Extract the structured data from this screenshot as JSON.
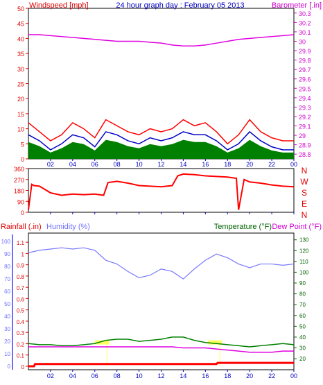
{
  "chart_data": [
    {
      "name": "top-panel",
      "type": "line",
      "title": "24 hour graph day : February 05 2013",
      "left_label": "Windspeed [mph]",
      "right_label": "Barometer [.in]",
      "x_ticks": [
        "02",
        "04",
        "06",
        "08",
        "10",
        "12",
        "14",
        "16",
        "18",
        "20",
        "22",
        "00"
      ],
      "left_ticks": [
        "0",
        "5",
        "10",
        "15",
        "20",
        "25",
        "30",
        "35",
        "40",
        "45",
        "50"
      ],
      "right_ticks": [
        "28.8",
        "28.9",
        "29",
        "29.1",
        "29.2",
        "29.3",
        "29.4",
        "29.5",
        "29.6",
        "29.7",
        "29.8",
        "29.9",
        "30",
        "30.1",
        "30.2",
        "30.3"
      ],
      "ylim_left": [
        0,
        50
      ],
      "ylim_right": [
        28.75,
        30.35
      ],
      "colors": {
        "gust": "#ff0000",
        "avg": "#0000c8",
        "wind_fill": "#008000",
        "barometer": "#e000e0"
      },
      "barometer": {
        "x": [
          0,
          1,
          2,
          3,
          4,
          5,
          6,
          7,
          8,
          9,
          10,
          11,
          12,
          13,
          14,
          15,
          16,
          17,
          18,
          19,
          20,
          21,
          22,
          23,
          24
        ],
        "y": [
          30.07,
          30.07,
          30.06,
          30.05,
          30.04,
          30.03,
          30.02,
          30.01,
          30.0,
          30.0,
          30.0,
          29.99,
          29.98,
          29.96,
          29.95,
          29.95,
          29.96,
          29.98,
          30.0,
          30.02,
          30.03,
          30.04,
          30.05,
          30.06,
          30.07
        ]
      },
      "wind_gust": {
        "x": [
          0,
          1,
          2,
          3,
          4,
          5,
          6,
          7,
          8,
          9,
          10,
          11,
          12,
          13,
          14,
          15,
          16,
          17,
          18,
          19,
          20,
          21,
          22,
          23,
          24
        ],
        "y": [
          12,
          9,
          6,
          8,
          12,
          10,
          7,
          13,
          11,
          9,
          8,
          10,
          9,
          10,
          13,
          11,
          12,
          9,
          5,
          8,
          13,
          9,
          7,
          6,
          6
        ]
      },
      "wind_avg": {
        "x": [
          0,
          1,
          2,
          3,
          4,
          5,
          6,
          7,
          8,
          9,
          10,
          11,
          12,
          13,
          14,
          15,
          16,
          17,
          18,
          19,
          20,
          21,
          22,
          23,
          24
        ],
        "y": [
          8,
          6,
          3,
          5,
          8,
          7,
          4,
          9,
          8,
          6,
          5,
          7,
          6,
          7,
          9,
          8,
          8,
          6,
          3,
          5,
          9,
          6,
          4,
          3,
          3
        ]
      }
    },
    {
      "name": "direction-panel",
      "type": "line",
      "right_label_letters": [
        "N",
        "W",
        "S",
        "E",
        "N"
      ],
      "left_ticks": [
        "0",
        "90",
        "180",
        "270",
        "360"
      ],
      "x_ticks": [
        "02",
        "04",
        "06",
        "08",
        "10",
        "12",
        "14",
        "16",
        "18",
        "20",
        "22",
        "00"
      ],
      "ylim": [
        0,
        360
      ],
      "colors": {
        "direction": "#ff0000"
      },
      "direction": {
        "x": [
          0,
          0.3,
          0.5,
          1,
          2,
          3,
          4,
          5,
          6,
          6.8,
          7.2,
          8,
          9,
          10,
          11,
          12,
          13,
          13.5,
          14,
          15,
          16,
          17,
          18,
          18.8,
          19,
          19.5,
          20,
          21,
          22,
          23,
          24
        ],
        "y": [
          20,
          230,
          220,
          215,
          160,
          140,
          150,
          145,
          150,
          140,
          245,
          255,
          240,
          220,
          215,
          210,
          220,
          300,
          315,
          310,
          300,
          295,
          290,
          280,
          20,
          270,
          250,
          240,
          225,
          215,
          210
        ]
      }
    },
    {
      "name": "bottom-panel",
      "type": "line",
      "legend": [
        "Rainfall (.in)",
        "Humidity (%)",
        "Temperature (°F)",
        "Dew Point (°F)"
      ],
      "rain_ticks": [
        "0",
        "0.1",
        "0.2",
        "0.3",
        "0.4",
        "0.5",
        "0.6",
        "0.7",
        "0.8",
        "0.9",
        "1",
        "1.1"
      ],
      "humidity_ticks": [
        "0",
        "10",
        "20",
        "30",
        "40",
        "50",
        "60",
        "70",
        "80",
        "90",
        "100"
      ],
      "temp_ticks": [
        "20",
        "30",
        "40",
        "50",
        "60",
        "70",
        "80",
        "90",
        "100",
        "110",
        "120",
        "130"
      ],
      "x_ticks": [
        "02",
        "04",
        "06",
        "08",
        "10",
        "12",
        "14",
        "16",
        "18",
        "20",
        "22",
        "00"
      ],
      "colors": {
        "humidity": "#7878ff",
        "temperature": "#008000",
        "dewpoint": "#e000e0",
        "rain": "#ff0000",
        "sun": "#ffff60"
      },
      "humidity": {
        "x": [
          0,
          1,
          2,
          3,
          4,
          5,
          6,
          7,
          8,
          9,
          10,
          11,
          12,
          13,
          14,
          15,
          16,
          17,
          18,
          19,
          20,
          21,
          22,
          23,
          24
        ],
        "y": [
          91,
          93,
          94,
          95,
          94,
          95,
          93,
          85,
          82,
          76,
          71,
          73,
          78,
          76,
          70,
          78,
          85,
          90,
          87,
          82,
          79,
          82,
          82,
          81,
          82
        ]
      },
      "temperature": {
        "x": [
          0,
          1,
          2,
          3,
          4,
          5,
          6,
          7,
          8,
          9,
          10,
          11,
          12,
          13,
          14,
          15,
          16,
          17,
          18,
          19,
          20,
          21,
          22,
          23,
          24
        ],
        "y": [
          34,
          33,
          33,
          32,
          32,
          33,
          34,
          37,
          38,
          38,
          36,
          37,
          38,
          40,
          40,
          37,
          35,
          34,
          33,
          32,
          31,
          32,
          33,
          34,
          33
        ]
      },
      "dewpoint": {
        "x": [
          0,
          1,
          2,
          3,
          4,
          5,
          6,
          7,
          8,
          9,
          10,
          11,
          12,
          13,
          14,
          15,
          16,
          17,
          18,
          19,
          20,
          21,
          22,
          23,
          24
        ],
        "y": [
          31,
          31,
          31,
          31,
          31,
          31,
          31,
          31,
          31,
          31,
          31,
          31,
          31,
          31,
          30,
          30,
          30,
          29,
          28,
          27,
          26,
          26,
          26,
          27,
          27
        ]
      },
      "rain": {
        "x": [
          0,
          0.5,
          0.6,
          17,
          17.1,
          24
        ],
        "y": [
          0,
          0,
          0.02,
          0.02,
          0.03,
          0.03
        ]
      }
    }
  ]
}
